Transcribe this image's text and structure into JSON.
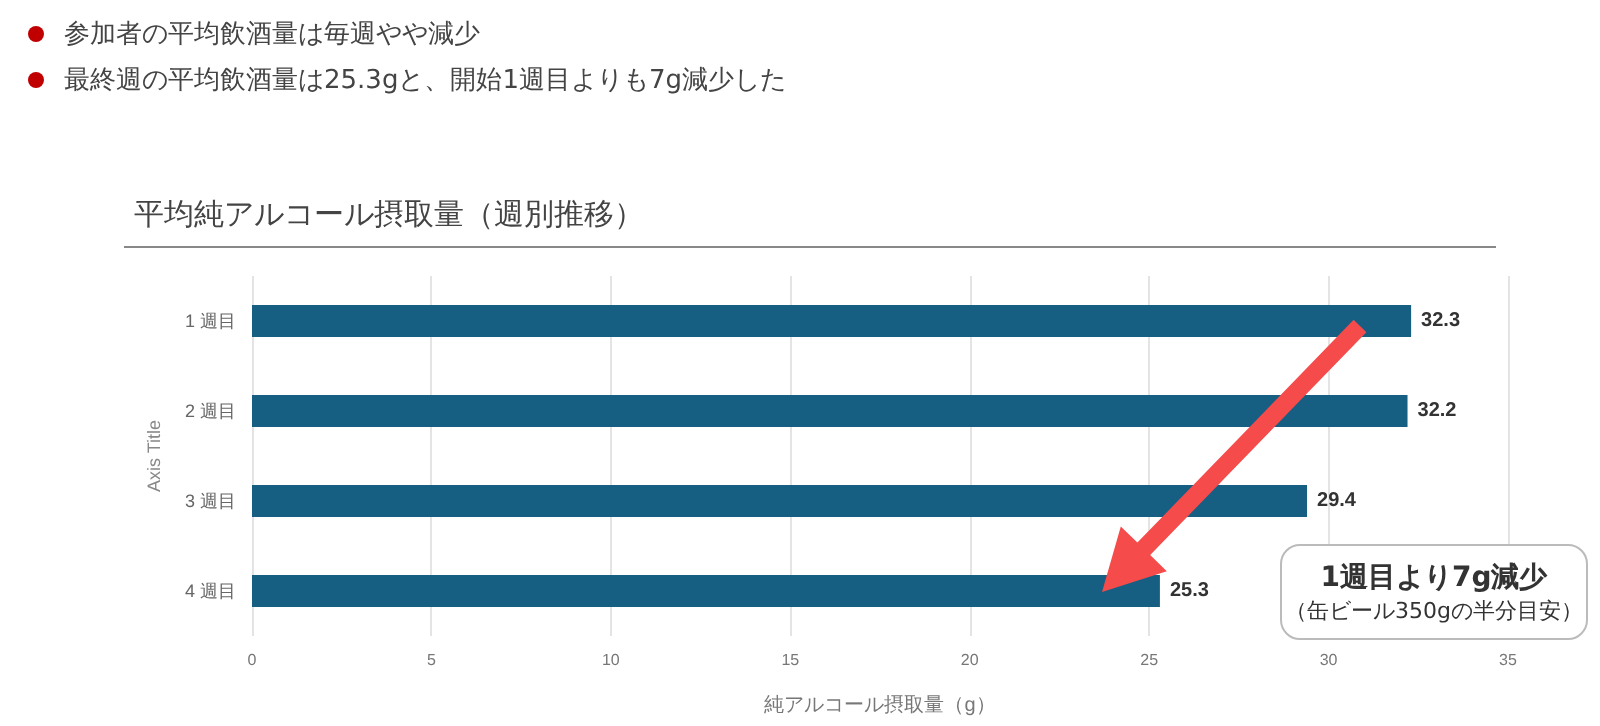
{
  "chart_data": {
    "type": "bar",
    "orientation": "horizontal",
    "title": "平均純アルコール摂取量（週別推移）",
    "xlabel": "純アルコール摂取量（g）",
    "ylabel": "Axis Title",
    "categories": [
      "1 週目",
      "2 週目",
      "3 週目",
      "4 週目"
    ],
    "values": [
      32.3,
      32.2,
      29.4,
      25.3
    ],
    "color": "#165e82",
    "xlim": [
      0,
      35
    ],
    "xticks": [
      0,
      5,
      10,
      15,
      20,
      25,
      30,
      35
    ],
    "grid": "x",
    "data_labels": true,
    "annotations": [
      "参加者の平均飲酒量は毎週やや減少",
      "最終週の平均飲酒量は25.3gと、開始1週目よりも7g減少した",
      "1週目より7g減少",
      "（缶ビール350gの半分目安）"
    ]
  }
}
